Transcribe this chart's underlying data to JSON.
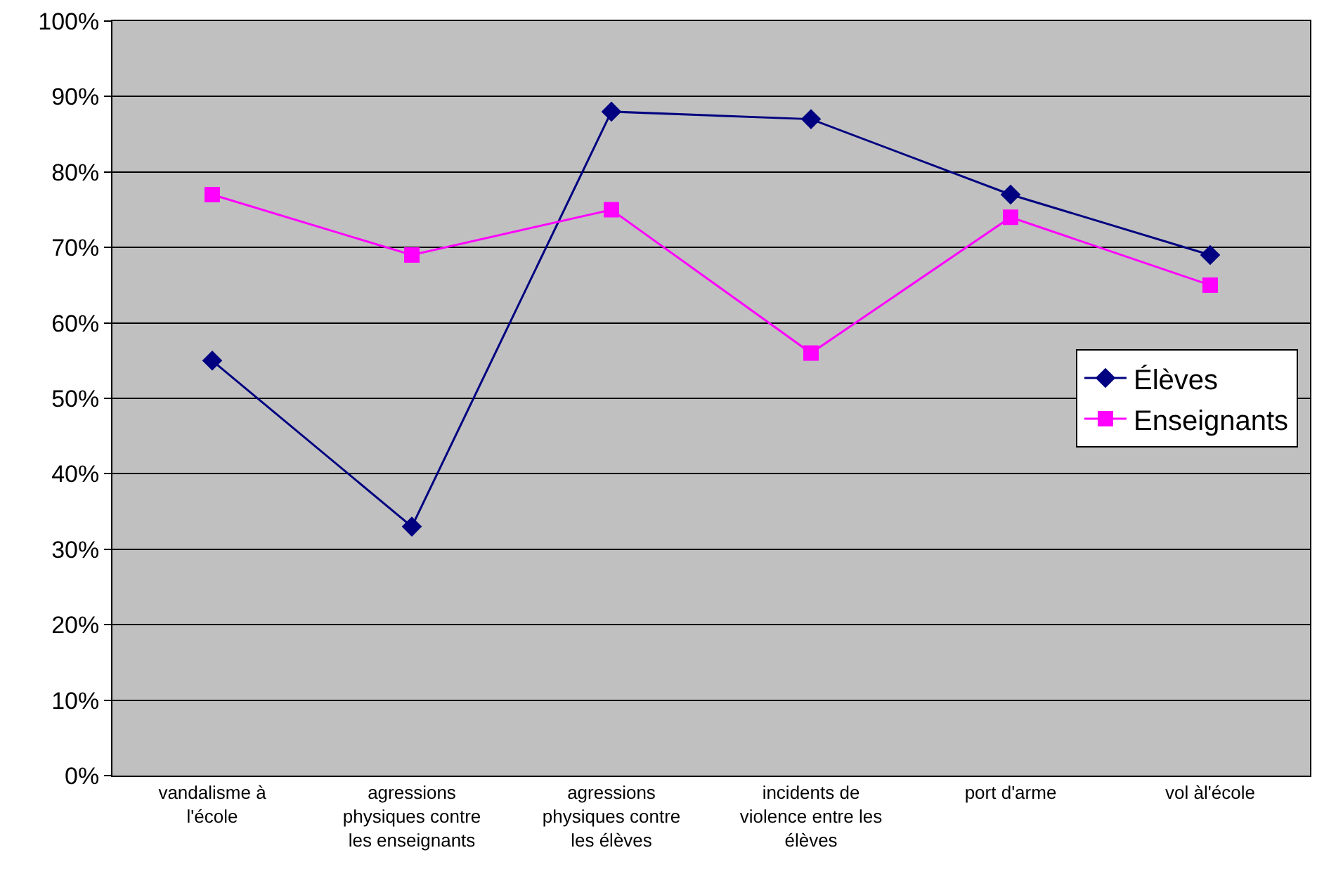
{
  "chart_data": {
    "type": "line",
    "categories": [
      "vandalisme à l'école",
      "agressions physiques contre les enseignants",
      "agressions physiques contre les élèves",
      "incidents de violence entre les élèves",
      "port d'arme",
      "vol àl'école"
    ],
    "series": [
      {
        "name": "Élèves",
        "color": "#000080",
        "marker": "diamond",
        "values": [
          55,
          33,
          88,
          87,
          77,
          69
        ]
      },
      {
        "name": "Enseignants",
        "color": "#ff00ff",
        "marker": "square",
        "values": [
          77,
          69,
          75,
          56,
          74,
          65
        ]
      }
    ],
    "ylim": [
      0,
      100
    ],
    "yticks": [
      {
        "value": 0,
        "label": "0%"
      },
      {
        "value": 10,
        "label": "10%"
      },
      {
        "value": 20,
        "label": "20%"
      },
      {
        "value": 30,
        "label": "30%"
      },
      {
        "value": 40,
        "label": "40%"
      },
      {
        "value": 50,
        "label": "50%"
      },
      {
        "value": 60,
        "label": "60%"
      },
      {
        "value": 70,
        "label": "70%"
      },
      {
        "value": 80,
        "label": "80%"
      },
      {
        "value": 90,
        "label": "90%"
      },
      {
        "value": 100,
        "label": "100%"
      }
    ],
    "grid": "y",
    "legend": "right",
    "line_style": "solid"
  }
}
